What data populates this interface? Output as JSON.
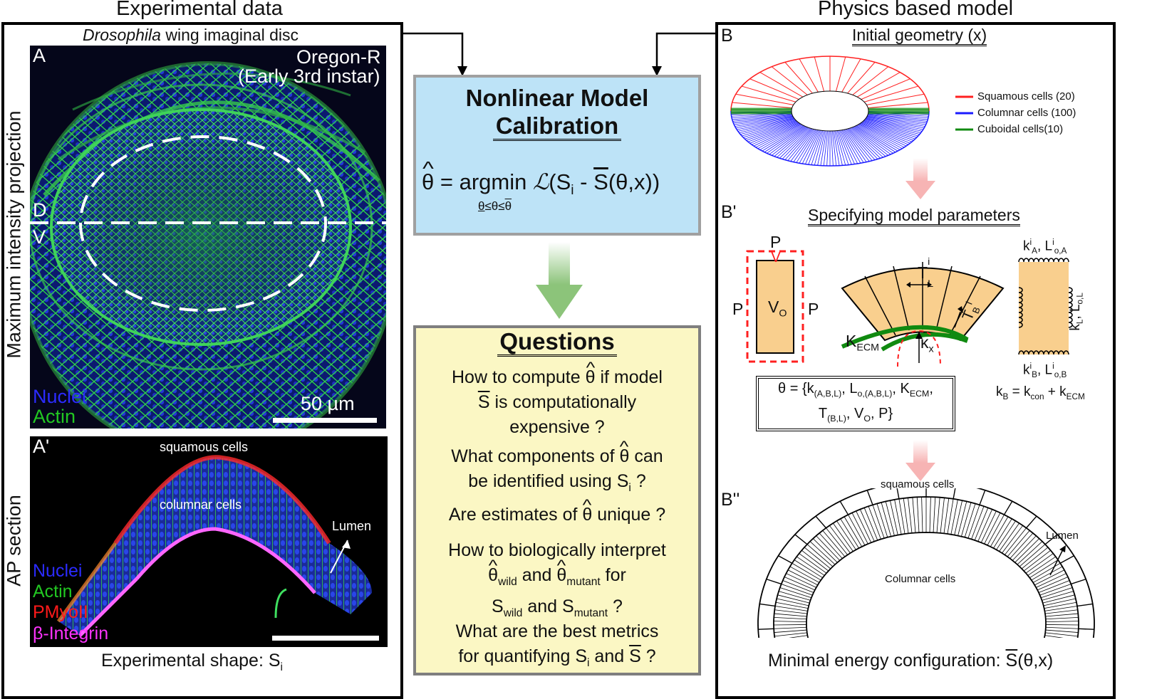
{
  "headers": {
    "left": "Experimental data",
    "right": "Physics based model"
  },
  "panelA": {
    "caption_italic": "Drosophila",
    "caption_rest": "wing imaginal disc",
    "letter": "A",
    "strain": "Oregon-R",
    "stage": "(Early 3rd instar)",
    "d_label": "D",
    "v_label": "V",
    "legend": [
      {
        "text": "Nuclei",
        "color": "#2b2bff"
      },
      {
        "text": "Actin",
        "color": "#22c722"
      }
    ],
    "scalebar": "50 µm",
    "side_label": "Maximum intensity projection"
  },
  "panelA2": {
    "letter": "A'",
    "squamous": "squamous cells",
    "columnar": "columnar cells",
    "lumen": "Lumen",
    "legend": [
      {
        "text": "Nuclei",
        "color": "#2b2bff"
      },
      {
        "text": "Actin",
        "color": "#22c722"
      },
      {
        "text": "PMyoII",
        "color": "#ff1a1a"
      },
      {
        "text": "β-Integrin",
        "color": "#ff33ff"
      }
    ],
    "side_label": "AP section",
    "bottom_caption": "Experimental shape: S",
    "bottom_sub": "i"
  },
  "calibration": {
    "title_line1": "Nonlinear Model",
    "title_line2": "Calibration",
    "eq_theta": "θ",
    "eq_mid": " = argmin ",
    "eq_L": "ℒ",
    "eq_S": "(S",
    "eq_i": "i",
    "eq_minus": " - ",
    "eq_Sbar": "S",
    "eq_tail": "(θ,x))",
    "constraint_a": "θ",
    "constraint_b": "≤θ≤",
    "constraint_c": "θ"
  },
  "questions": {
    "title": "Questions",
    "q1_a": "How to compute ",
    "q1_theta": "θ",
    "q1_b": " if model",
    "q1_c": "S",
    "q1_d": " is computationally",
    "q1_e": "expensive ?",
    "q2_a": "What components of ",
    "q2_theta": "θ",
    "q2_b": " can",
    "q2_c": "be identified using S",
    "q2_i": "i",
    "q2_d": " ?",
    "q3_a": "Are estimates of ",
    "q3_theta": "θ",
    "q3_b": " unique ?",
    "q4_a": "How to biologically interpret",
    "q4_theta1": "θ",
    "q4_wild": "wild",
    "q4_and": " and ",
    "q4_theta2": "θ",
    "q4_mutant": "mutant",
    "q4_for": " for",
    "q4_S1": "S",
    "q4_and2": " and S",
    "q4_end": " ?",
    "q5_a": "What are the best metrics",
    "q5_b": "for  quantifying S",
    "q5_i": "i",
    "q5_c": " and ",
    "q5_S": "S",
    "q5_d": " ?"
  },
  "panelB": {
    "letter": "B",
    "title": "Initial geometry (x)",
    "legend": [
      {
        "text": "Squamous cells (20)",
        "color": "#ff2020"
      },
      {
        "text": "Columnar cells (100)",
        "color": "#1a1aff"
      },
      {
        "text": "Cuboidal cells(10)",
        "color": "#108a10"
      }
    ]
  },
  "panelB1": {
    "letter": "B'",
    "title": "Specifying model parameters",
    "P": "P",
    "V": "V",
    "VO": "V",
    "VO_sub": "O",
    "K": "K",
    "K_sub": "ECM",
    "kx": "κ",
    "kx_sub": "x",
    "TL": "T",
    "TL_sub": "L",
    "TL_sup": "i",
    "TB": "T",
    "TB_sub": "B",
    "TB_sup": "i",
    "springs_top_a": "k",
    "springs_top_a_sub": "A",
    "springs_top_a_sup": "i",
    "springs_top_b": ", L",
    "springs_top_b_sub": "o,A",
    "springs_top_b_sup": "i",
    "springs_side": "k",
    "springs_side_sub": "L",
    "springs_side_b": ", L",
    "springs_side_b_sub": "o,L",
    "springs_bottom_a": "k",
    "springs_bottom_a_sub": "B",
    "springs_bottom_a_sup": "i",
    "springs_bottom_b": ", L",
    "springs_bottom_b_sub": "o,B",
    "springs_bottom_b_sup": "i",
    "kB_a": "k",
    "kB_a_sub": "B",
    "kB_b": " = k",
    "kB_b_sub": "con",
    "kB_c": " + k",
    "kB_c_sub": "ECM",
    "params_l1_a": "θ = {k",
    "params_l1_a_sub": "(A,B,L)",
    "params_l1_b": ", L",
    "params_l1_b_sub": "o,(A,B,L)",
    "params_l1_c": ", K",
    "params_l1_c_sub": "ECM",
    "params_l1_d": ",",
    "params_l2_a": "T",
    "params_l2_a_sub": "(B,L)",
    "params_l2_b": ", V",
    "params_l2_b_sub": "O",
    "params_l2_c": ", P}"
  },
  "panelB2": {
    "letter": "B''",
    "squamous": "squamous cells",
    "columnar": "Columnar cells",
    "lumen": "Lumen",
    "caption_a": "Minimal energy configuration: ",
    "caption_S": "S",
    "caption_b": "(θ,x)"
  }
}
